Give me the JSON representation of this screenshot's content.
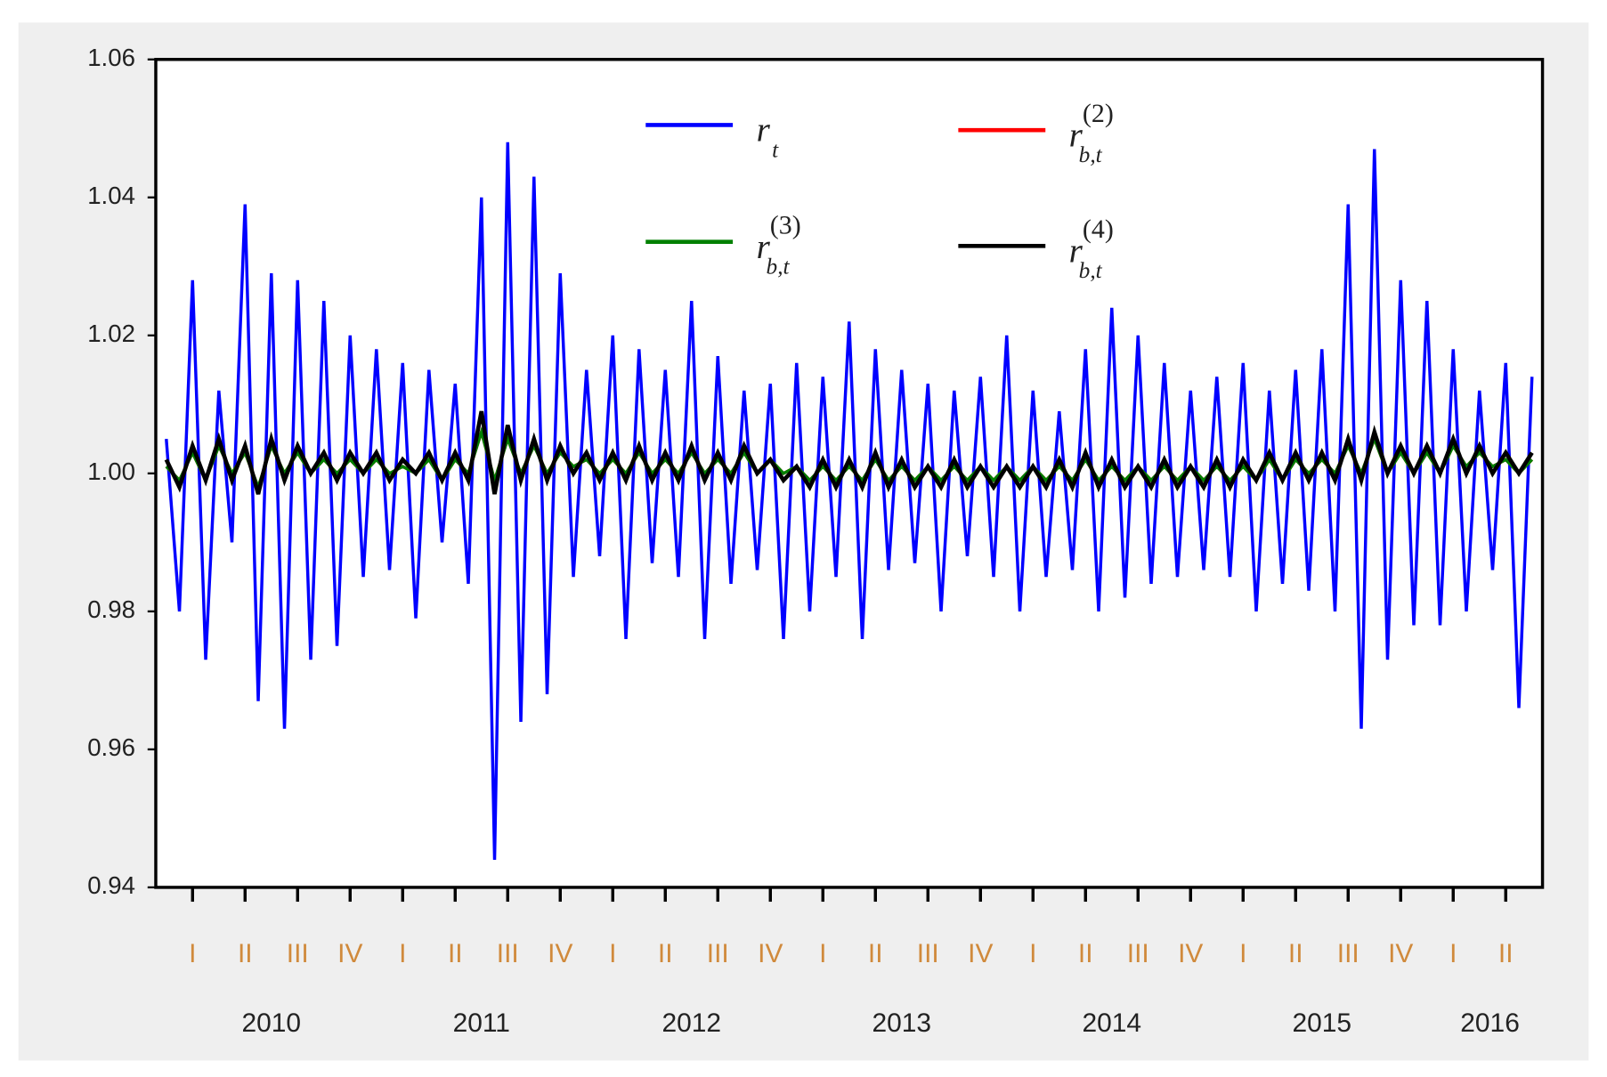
{
  "chart_data": {
    "type": "line",
    "x": [
      2010.0,
      2010.0625,
      2010.125,
      2010.1875,
      2010.25,
      2010.3125,
      2010.375,
      2010.4375,
      2010.5,
      2010.5625,
      2010.625,
      2010.6875,
      2010.75,
      2010.8125,
      2010.875,
      2010.9375,
      2011.0,
      2011.0625,
      2011.125,
      2011.1875,
      2011.25,
      2011.3125,
      2011.375,
      2011.4375,
      2011.5,
      2011.5625,
      2011.625,
      2011.6875,
      2011.75,
      2011.8125,
      2011.875,
      2011.9375,
      2012.0,
      2012.0625,
      2012.125,
      2012.1875,
      2012.25,
      2012.3125,
      2012.375,
      2012.4375,
      2012.5,
      2012.5625,
      2012.625,
      2012.6875,
      2012.75,
      2012.8125,
      2012.875,
      2012.9375,
      2013.0,
      2013.0625,
      2013.125,
      2013.1875,
      2013.25,
      2013.3125,
      2013.375,
      2013.4375,
      2013.5,
      2013.5625,
      2013.625,
      2013.6875,
      2013.75,
      2013.8125,
      2013.875,
      2013.9375,
      2014.0,
      2014.0625,
      2014.125,
      2014.1875,
      2014.25,
      2014.3125,
      2014.375,
      2014.4375,
      2014.5,
      2014.5625,
      2014.625,
      2014.6875,
      2014.75,
      2014.8125,
      2014.875,
      2014.9375,
      2015.0,
      2015.0625,
      2015.125,
      2015.1875,
      2015.25,
      2015.3125,
      2015.375,
      2015.4375,
      2015.5,
      2015.5625,
      2015.625,
      2015.6875,
      2015.75,
      2015.8125,
      2015.875,
      2015.9375,
      2016.0,
      2016.0625,
      2016.125,
      2016.1875,
      2016.25,
      2016.3125,
      2016.375,
      2016.4375,
      2016.5
    ],
    "series": [
      {
        "name": "rt",
        "color": "#0000ff",
        "width": 3,
        "values": [
          1.005,
          0.98,
          1.028,
          0.973,
          1.012,
          0.99,
          1.039,
          0.967,
          1.029,
          0.963,
          1.028,
          0.973,
          1.025,
          0.975,
          1.02,
          0.985,
          1.018,
          0.986,
          1.016,
          0.979,
          1.015,
          0.99,
          1.013,
          0.984,
          1.04,
          0.944,
          1.048,
          0.964,
          1.043,
          0.968,
          1.029,
          0.985,
          1.015,
          0.988,
          1.02,
          0.976,
          1.018,
          0.987,
          1.015,
          0.985,
          1.025,
          0.976,
          1.017,
          0.984,
          1.012,
          0.986,
          1.013,
          0.976,
          1.016,
          0.98,
          1.014,
          0.985,
          1.022,
          0.976,
          1.018,
          0.986,
          1.015,
          0.987,
          1.013,
          0.98,
          1.012,
          0.988,
          1.014,
          0.985,
          1.02,
          0.98,
          1.012,
          0.985,
          1.009,
          0.986,
          1.018,
          0.98,
          1.024,
          0.982,
          1.02,
          0.984,
          1.016,
          0.985,
          1.012,
          0.986,
          1.014,
          0.985,
          1.016,
          0.98,
          1.012,
          0.984,
          1.015,
          0.983,
          1.018,
          0.98,
          1.039,
          0.963,
          1.047,
          0.973,
          1.028,
          0.978,
          1.025,
          0.978,
          1.018,
          0.98,
          1.012,
          0.986,
          1.016,
          0.966,
          1.014
        ]
      },
      {
        "name": "r(2)b,t",
        "color": "#ff0000",
        "width": 3,
        "values": [
          1.001,
          0.999,
          1.003,
          0.999,
          1.004,
          1.0,
          1.003,
          0.998,
          1.004,
          1.0,
          1.003,
          1.0,
          1.002,
          1.0,
          1.002,
          1.0,
          1.002,
          1.0,
          1.001,
          1.0,
          1.002,
          0.999,
          1.002,
          1.0,
          1.006,
          0.999,
          1.005,
          1.0,
          1.004,
          1.0,
          1.003,
          1.001,
          1.002,
          1.0,
          1.002,
          1.0,
          1.003,
          1.0,
          1.002,
          1.0,
          1.003,
          1.0,
          1.002,
          1.0,
          1.003,
          1.0,
          1.002,
          1.0,
          1.001,
          0.999,
          1.001,
          0.999,
          1.001,
          0.999,
          1.002,
          0.999,
          1.001,
          0.999,
          1.001,
          0.999,
          1.001,
          0.999,
          1.001,
          0.999,
          1.001,
          0.999,
          1.001,
          0.999,
          1.001,
          0.999,
          1.002,
          0.999,
          1.001,
          0.999,
          1.001,
          0.999,
          1.001,
          0.999,
          1.001,
          0.999,
          1.001,
          0.999,
          1.001,
          0.999,
          1.002,
          0.999,
          1.002,
          1.0,
          1.002,
          1.0,
          1.004,
          1.0,
          1.005,
          1.0,
          1.003,
          1.0,
          1.003,
          1.0,
          1.004,
          1.001,
          1.003,
          1.001,
          1.002,
          1.0,
          1.002
        ]
      },
      {
        "name": "r(3)b,t",
        "color": "#008000",
        "width": 3,
        "values": [
          1.001,
          0.999,
          1.003,
          0.999,
          1.004,
          1.0,
          1.003,
          0.998,
          1.004,
          1.0,
          1.003,
          1.0,
          1.002,
          1.0,
          1.002,
          1.0,
          1.002,
          1.0,
          1.001,
          1.0,
          1.002,
          0.999,
          1.002,
          1.0,
          1.006,
          0.999,
          1.005,
          1.0,
          1.004,
          1.0,
          1.003,
          1.001,
          1.002,
          1.0,
          1.002,
          1.0,
          1.003,
          1.0,
          1.002,
          1.0,
          1.003,
          1.0,
          1.002,
          1.0,
          1.003,
          1.0,
          1.002,
          1.0,
          1.001,
          0.999,
          1.001,
          0.999,
          1.001,
          0.999,
          1.002,
          0.999,
          1.001,
          0.999,
          1.001,
          0.999,
          1.001,
          0.999,
          1.001,
          0.999,
          1.001,
          0.999,
          1.001,
          0.999,
          1.001,
          0.999,
          1.002,
          0.999,
          1.001,
          0.999,
          1.001,
          0.999,
          1.001,
          0.999,
          1.001,
          0.999,
          1.001,
          0.999,
          1.001,
          0.999,
          1.002,
          0.999,
          1.002,
          1.0,
          1.002,
          1.0,
          1.004,
          1.0,
          1.005,
          1.0,
          1.003,
          1.0,
          1.003,
          1.0,
          1.004,
          1.001,
          1.003,
          1.001,
          1.002,
          1.0,
          1.002
        ]
      },
      {
        "name": "r(4)b,t",
        "color": "#000000",
        "width": 4,
        "values": [
          1.002,
          0.998,
          1.004,
          0.999,
          1.005,
          0.999,
          1.004,
          0.997,
          1.005,
          0.999,
          1.004,
          1.0,
          1.003,
          0.999,
          1.003,
          1.0,
          1.003,
          0.999,
          1.002,
          1.0,
          1.003,
          0.999,
          1.003,
          0.999,
          1.009,
          0.997,
          1.007,
          0.999,
          1.005,
          0.999,
          1.004,
          1.0,
          1.003,
          0.999,
          1.003,
          0.999,
          1.004,
          0.999,
          1.003,
          0.999,
          1.004,
          0.999,
          1.003,
          0.999,
          1.004,
          1.0,
          1.002,
          0.999,
          1.001,
          0.998,
          1.002,
          0.998,
          1.002,
          0.998,
          1.003,
          0.998,
          1.002,
          0.998,
          1.001,
          0.998,
          1.002,
          0.998,
          1.001,
          0.998,
          1.001,
          0.998,
          1.001,
          0.998,
          1.002,
          0.998,
          1.003,
          0.998,
          1.002,
          0.998,
          1.001,
          0.998,
          1.002,
          0.998,
          1.001,
          0.998,
          1.002,
          0.998,
          1.002,
          0.999,
          1.003,
          0.999,
          1.003,
          0.999,
          1.003,
          0.999,
          1.005,
          0.999,
          1.006,
          1.0,
          1.004,
          1.0,
          1.004,
          1.0,
          1.005,
          1.0,
          1.004,
          1.0,
          1.003,
          1.0,
          1.003
        ]
      }
    ],
    "xlim": [
      2009.95,
      2016.55
    ],
    "xticks": [
      {
        "value": 2010.125,
        "label": "I"
      },
      {
        "value": 2010.375,
        "label": "II"
      },
      {
        "value": 2010.625,
        "label": "III"
      },
      {
        "value": 2010.875,
        "label": "IV"
      },
      {
        "value": 2011.125,
        "label": "I"
      },
      {
        "value": 2011.375,
        "label": "II"
      },
      {
        "value": 2011.625,
        "label": "III"
      },
      {
        "value": 2011.875,
        "label": "IV"
      },
      {
        "value": 2012.125,
        "label": "I"
      },
      {
        "value": 2012.375,
        "label": "II"
      },
      {
        "value": 2012.625,
        "label": "III"
      },
      {
        "value": 2012.875,
        "label": "IV"
      },
      {
        "value": 2013.125,
        "label": "I"
      },
      {
        "value": 2013.375,
        "label": "II"
      },
      {
        "value": 2013.625,
        "label": "III"
      },
      {
        "value": 2013.875,
        "label": "IV"
      },
      {
        "value": 2014.125,
        "label": "I"
      },
      {
        "value": 2014.375,
        "label": "II"
      },
      {
        "value": 2014.625,
        "label": "III"
      },
      {
        "value": 2014.875,
        "label": "IV"
      },
      {
        "value": 2015.125,
        "label": "I"
      },
      {
        "value": 2015.375,
        "label": "II"
      },
      {
        "value": 2015.625,
        "label": "III"
      },
      {
        "value": 2015.875,
        "label": "IV"
      },
      {
        "value": 2016.125,
        "label": "I"
      },
      {
        "value": 2016.375,
        "label": "II"
      }
    ],
    "x_group_labels": [
      {
        "value": 2010.5,
        "label": "2010"
      },
      {
        "value": 2011.5,
        "label": "2011"
      },
      {
        "value": 2012.5,
        "label": "2012"
      },
      {
        "value": 2013.5,
        "label": "2013"
      },
      {
        "value": 2014.5,
        "label": "2014"
      },
      {
        "value": 2015.5,
        "label": "2015"
      },
      {
        "value": 2016.3,
        "label": "2016"
      }
    ],
    "ylim": [
      0.94,
      1.06
    ],
    "yticks": [
      0.94,
      0.96,
      0.98,
      {
        "value": 1,
        "label": "1.00"
      },
      1.02,
      1.04,
      1.06
    ],
    "legend": "top"
  }
}
